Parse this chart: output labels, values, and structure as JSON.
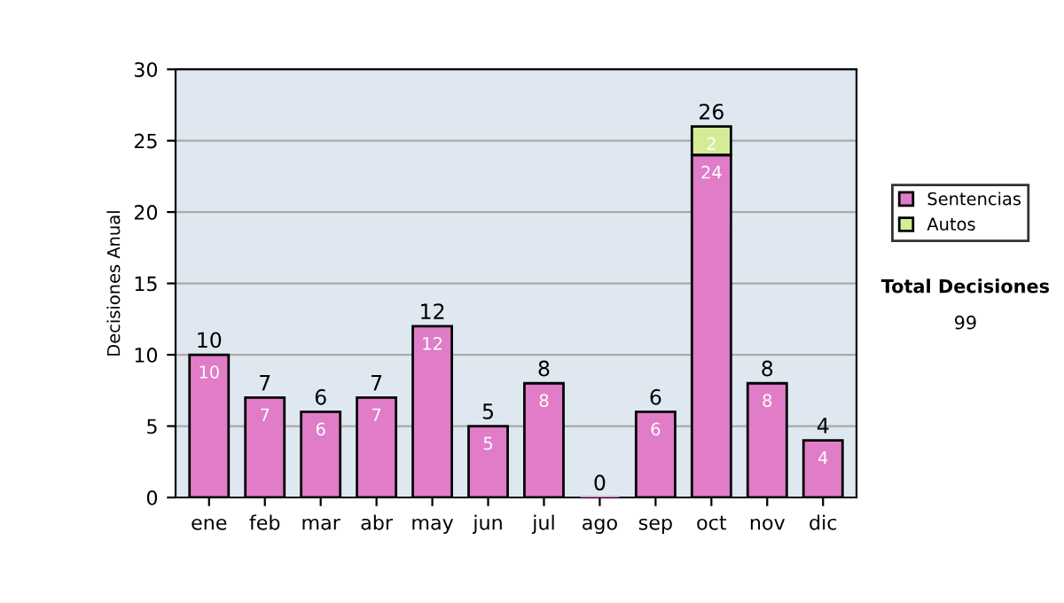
{
  "chart_data": {
    "type": "bar",
    "stacked": true,
    "ylabel": "Decisiones Anual",
    "categories": [
      "ene",
      "feb",
      "mar",
      "abr",
      "may",
      "jun",
      "jul",
      "ago",
      "sep",
      "oct",
      "nov",
      "dic"
    ],
    "series": [
      {
        "name": "Sentencias",
        "color": "#e07cc8",
        "values": [
          10,
          7,
          6,
          7,
          12,
          5,
          8,
          0,
          6,
          24,
          8,
          4
        ],
        "value_labels": [
          "10",
          "7",
          "6",
          "7",
          "12",
          "5",
          "8",
          null,
          "6",
          "24",
          "8",
          "4"
        ]
      },
      {
        "name": "Autos",
        "color": "#d4ec98",
        "values": [
          null,
          null,
          null,
          null,
          null,
          null,
          null,
          null,
          null,
          2,
          null,
          null
        ],
        "value_labels": [
          null,
          null,
          null,
          null,
          null,
          null,
          null,
          null,
          null,
          "2",
          null,
          null
        ]
      }
    ],
    "totals": [
      "10",
      "7",
      "6",
      "7",
      "12",
      "5",
      "8",
      "0",
      "6",
      "26",
      "8",
      "4"
    ],
    "ylim": [
      0,
      30
    ],
    "yticks": [
      0,
      5,
      10,
      15,
      20,
      25,
      30
    ],
    "grid": "y",
    "legend": "right",
    "annotations": [
      "Total Decisiones",
      "99"
    ]
  }
}
